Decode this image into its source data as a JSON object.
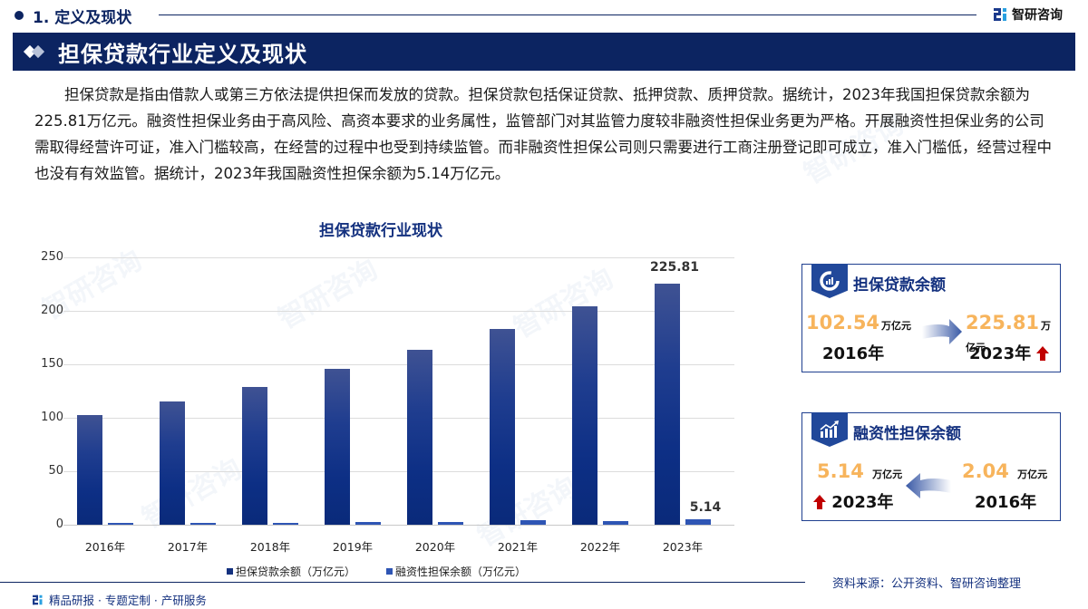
{
  "header": {
    "section_title": "1. 定义及现状",
    "logo_name": "智研咨询"
  },
  "banner": {
    "title": "担保贷款行业定义及现状"
  },
  "body_text": "担保贷款是指由借款人或第三方依法提供担保而发放的贷款。担保贷款包括保证贷款、抵押贷款、质押贷款。据统计，2023年我国担保贷款余额为225.81万亿元。融资性担保业务由于高风险、高资本要求的业务属性，监管部门对其监管力度较非融资性担保业务更为严格。开展融资性担保业务的公司需取得经营许可证，准入门槛较高，在经营的过程中也受到持续监管。而非融资性担保公司则只需要进行工商注册登记即可成立，准入门槛低，经营过程中也没有有效监管。据统计，2023年我国融资性担保余额为5.14万亿元。",
  "chart_data": {
    "type": "bar",
    "title": "担保贷款行业现状",
    "categories": [
      "2016年",
      "2017年",
      "2018年",
      "2019年",
      "2020年",
      "2021年",
      "2022年",
      "2023年"
    ],
    "series": [
      {
        "name": "担保贷款余额（万亿元）",
        "color": "#14317f",
        "values": [
          102.54,
          115,
          129,
          146,
          163.5,
          183,
          204,
          225.81
        ]
      },
      {
        "name": "融资性担保余额（万亿元）",
        "color": "#2e55b4",
        "values": [
          2.04,
          2.1,
          2.1,
          2.7,
          2.5,
          3.9,
          3.7,
          5.14
        ]
      }
    ],
    "data_labels": {
      "s1_last": "225.81",
      "s2_last": "5.14"
    },
    "y_ticks": [
      "0",
      "50",
      "100",
      "150",
      "200",
      "250"
    ],
    "ylim": [
      0,
      250
    ],
    "xlabel": "",
    "ylabel": "",
    "grid": true,
    "legend_position": "bottom"
  },
  "legend": {
    "s1": "担保贷款余额（万亿元）",
    "s2": "融资性担保余额（万亿元）"
  },
  "kpi_cards": [
    {
      "title": "担保贷款余额",
      "icon": "donut-chart-icon",
      "from_value": "102.54",
      "from_year": "2016年",
      "to_value": "225.81",
      "to_year": "2023年",
      "unit": "万亿元"
    },
    {
      "title": "融资性担保余额",
      "icon": "growth-bars-icon",
      "from_value": "2.04",
      "from_year": "2016年",
      "to_value": "5.14",
      "to_year": "2023年",
      "unit": "万亿元"
    }
  ],
  "footer": {
    "left": "精品研报 · 专题定制 · 产研服务",
    "source": "资料来源：公开资料、智研咨询整理"
  },
  "colors": {
    "navy": "#0c2461",
    "accent_blue": "#14317f",
    "value_orange": "#f7b45c",
    "up_red": "#c00000"
  }
}
